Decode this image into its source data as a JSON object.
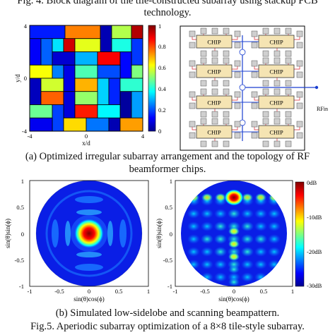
{
  "top_caption": {
    "line1": "Fig. 4. Block diagram of the tile-constructed subarray using stackup PCB",
    "line2": "technology."
  },
  "panel_a": {
    "caption_line1": "(a)  Optimized irregular subarray arrangement and the topology of RF",
    "caption_line2": "beamformer chips.",
    "grid": {
      "ylabel": "y/d",
      "xlabel": "x/d",
      "xticks": [
        "-4",
        "0",
        "4"
      ],
      "yticks": [
        "4",
        "0",
        "-4"
      ],
      "colorbar_ticks": [
        "1",
        "0.8",
        "0.6",
        "0.4",
        "0.2",
        "0"
      ],
      "blocks": [
        {
          "c": 0.15,
          "x0": -4,
          "x1": -1.5,
          "y0": 3,
          "y1": 4
        },
        {
          "c": 0.75,
          "x0": -1.5,
          "x1": 1,
          "y0": 3,
          "y1": 4
        },
        {
          "c": 0.05,
          "x0": 1,
          "x1": 1.8,
          "y0": 2,
          "y1": 4
        },
        {
          "c": 0.55,
          "x0": 1.8,
          "x1": 3.2,
          "y0": 3,
          "y1": 4
        },
        {
          "c": 0.95,
          "x0": 3.2,
          "x1": 4,
          "y0": 3,
          "y1": 4
        },
        {
          "c": 0.12,
          "x0": -4,
          "x1": -3.2,
          "y0": 1,
          "y1": 3
        },
        {
          "c": 0.22,
          "x0": -3.2,
          "x1": -2.4,
          "y0": 1,
          "y1": 3
        },
        {
          "c": 0.35,
          "x0": -2.4,
          "x1": -1.6,
          "y0": 2,
          "y1": 3
        },
        {
          "c": 0.92,
          "x0": -1.6,
          "x1": -0.8,
          "y0": 2,
          "y1": 3
        },
        {
          "c": 0.6,
          "x0": -0.8,
          "x1": 1,
          "y0": 2,
          "y1": 3
        },
        {
          "c": 0.4,
          "x0": 1.8,
          "x1": 3.2,
          "y0": 2,
          "y1": 3
        },
        {
          "c": 0.18,
          "x0": 3.2,
          "x1": 4,
          "y0": 1,
          "y1": 3
        },
        {
          "c": 0.08,
          "x0": -2.4,
          "x1": -0.8,
          "y0": 1,
          "y1": 2
        },
        {
          "c": 0.3,
          "x0": -0.8,
          "x1": 0.8,
          "y0": 1,
          "y1": 2
        },
        {
          "c": 0.88,
          "x0": 0.8,
          "x1": 2.4,
          "y0": 1,
          "y1": 2
        },
        {
          "c": 0.13,
          "x0": 2.4,
          "x1": 3.2,
          "y0": 0,
          "y1": 2
        },
        {
          "c": 0.62,
          "x0": -4,
          "x1": -2.4,
          "y0": 0,
          "y1": 1
        },
        {
          "c": 0.25,
          "x0": -2.4,
          "x1": -1.6,
          "y0": 0,
          "y1": 1
        },
        {
          "c": 0.1,
          "x0": -1.6,
          "x1": -0.8,
          "y0": -1,
          "y1": 1
        },
        {
          "c": 0.45,
          "x0": -0.8,
          "x1": 0.8,
          "y0": 0,
          "y1": 1
        },
        {
          "c": 0.2,
          "x0": 0.8,
          "x1": 2.4,
          "y0": 0,
          "y1": 1
        },
        {
          "c": 0.5,
          "x0": 3.2,
          "x1": 4,
          "y0": 0,
          "y1": 1
        },
        {
          "c": 0.06,
          "x0": -4,
          "x1": -3.2,
          "y0": -2,
          "y1": 0
        },
        {
          "c": 0.58,
          "x0": -3.2,
          "x1": -1.6,
          "y0": -1,
          "y1": 0
        },
        {
          "c": 0.7,
          "x0": -0.8,
          "x1": 0.8,
          "y0": -1,
          "y1": 0
        },
        {
          "c": 0.33,
          "x0": 0.8,
          "x1": 1.6,
          "y0": -2,
          "y1": 0
        },
        {
          "c": 0.16,
          "x0": 1.6,
          "x1": 2.4,
          "y0": -2,
          "y1": 0
        },
        {
          "c": 0.42,
          "x0": 2.4,
          "x1": 4,
          "y0": -1,
          "y1": 0
        },
        {
          "c": 0.78,
          "x0": -3.2,
          "x1": -1.6,
          "y0": -2,
          "y1": -1
        },
        {
          "c": 0.09,
          "x0": -1.6,
          "x1": -0.8,
          "y0": -3,
          "y1": -1
        },
        {
          "c": 0.52,
          "x0": -0.8,
          "x1": 0.8,
          "y0": -2,
          "y1": -1
        },
        {
          "c": 0.03,
          "x0": 2.4,
          "x1": 3.2,
          "y0": -3,
          "y1": -1
        },
        {
          "c": 0.28,
          "x0": 3.2,
          "x1": 4,
          "y0": -3,
          "y1": -1
        },
        {
          "c": 0.48,
          "x0": -4,
          "x1": -2.4,
          "y0": -3,
          "y1": -2
        },
        {
          "c": 0.19,
          "x0": -2.4,
          "x1": -1.6,
          "y0": -4,
          "y1": -2
        },
        {
          "c": 0.85,
          "x0": -0.8,
          "x1": 0.8,
          "y0": -3,
          "y1": -2
        },
        {
          "c": 0.37,
          "x0": 0.8,
          "x1": 2.4,
          "y0": -3,
          "y1": -2
        },
        {
          "c": 0.11,
          "x0": -4,
          "x1": -2.4,
          "y0": -4,
          "y1": -3
        },
        {
          "c": 0.66,
          "x0": -1.6,
          "x1": 0,
          "y0": -4,
          "y1": -3
        },
        {
          "c": 0.24,
          "x0": 0,
          "x1": 1.6,
          "y0": -4,
          "y1": -3
        },
        {
          "c": 0.05,
          "x0": 1.6,
          "x1": 2.4,
          "y0": -4,
          "y1": -3
        },
        {
          "c": 0.72,
          "x0": 2.4,
          "x1": 4,
          "y0": -4,
          "y1": -3
        }
      ]
    },
    "topology": {
      "chip_label": "CHIP",
      "rf_label": "RFin",
      "accent": "#1a3fd0"
    }
  },
  "panel_b": {
    "caption": "(b)  Simulated low-sidelobe and scanning beampattern.",
    "xlabel": "sin(θ)cos(ϕ)",
    "ylabel": "sin(θ)sin(ϕ)",
    "xticks": [
      "-1",
      "-0.5",
      "0",
      "0.5",
      "1"
    ],
    "yticks": [
      "1",
      "0.5",
      "0",
      "-0.5",
      "-1"
    ],
    "colorbar_ticks": [
      "0dB",
      "-10dB",
      "-20dB",
      "-30dB"
    ]
  },
  "bottom_caption": "Fig.5. Aperiodic subarray optimization of a 8×8 tile-style subarray."
}
